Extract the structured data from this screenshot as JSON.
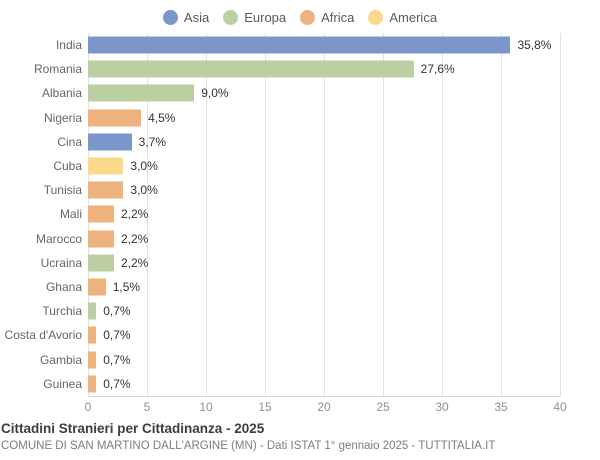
{
  "legend": {
    "items": [
      {
        "label": "Asia",
        "color": "#7b96cb"
      },
      {
        "label": "Europa",
        "color": "#bccfa2"
      },
      {
        "label": "Africa",
        "color": "#eeb27e"
      },
      {
        "label": "America",
        "color": "#fbd88a"
      }
    ]
  },
  "chart_data": {
    "type": "bar",
    "orientation": "horizontal",
    "title": "Cittadini Stranieri per Cittadinanza - 2025",
    "categories": [
      "India",
      "Romania",
      "Albania",
      "Nigeria",
      "Cina",
      "Cuba",
      "Tunisia",
      "Mali",
      "Marocco",
      "Ucraina",
      "Ghana",
      "Turchia",
      "Costa d'Avorio",
      "Gambia",
      "Guinea"
    ],
    "values": [
      35.8,
      27.6,
      9.0,
      4.5,
      3.7,
      3.0,
      3.0,
      2.2,
      2.2,
      2.2,
      1.5,
      0.7,
      0.7,
      0.7,
      0.7
    ],
    "value_labels": [
      "35,8%",
      "27,6%",
      "9,0%",
      "4,5%",
      "3,7%",
      "3,0%",
      "3,0%",
      "2,2%",
      "2,2%",
      "2,2%",
      "1,5%",
      "0,7%",
      "0,7%",
      "0,7%",
      "0,7%"
    ],
    "series_by_continent": [
      "Asia",
      "Europa",
      "Europa",
      "Africa",
      "Asia",
      "America",
      "Africa",
      "Africa",
      "Africa",
      "Europa",
      "Africa",
      "Europa",
      "Africa",
      "Africa",
      "Africa"
    ],
    "continent_colors": {
      "Asia": "#7b96cb",
      "Europa": "#bccfa2",
      "Africa": "#eeb27e",
      "America": "#fbd88a"
    },
    "xlim": [
      0,
      40
    ],
    "xticks": [
      0,
      5,
      10,
      15,
      20,
      25,
      30,
      35,
      40
    ],
    "grid": true,
    "legend_position": "top"
  },
  "footer": {
    "title": "Cittadini Stranieri per Cittadinanza - 2025",
    "subtitle": "COMUNE DI SAN MARTINO DALL'ARGINE (MN) - Dati ISTAT 1° gennaio 2025 - TUTTITALIA.IT"
  }
}
